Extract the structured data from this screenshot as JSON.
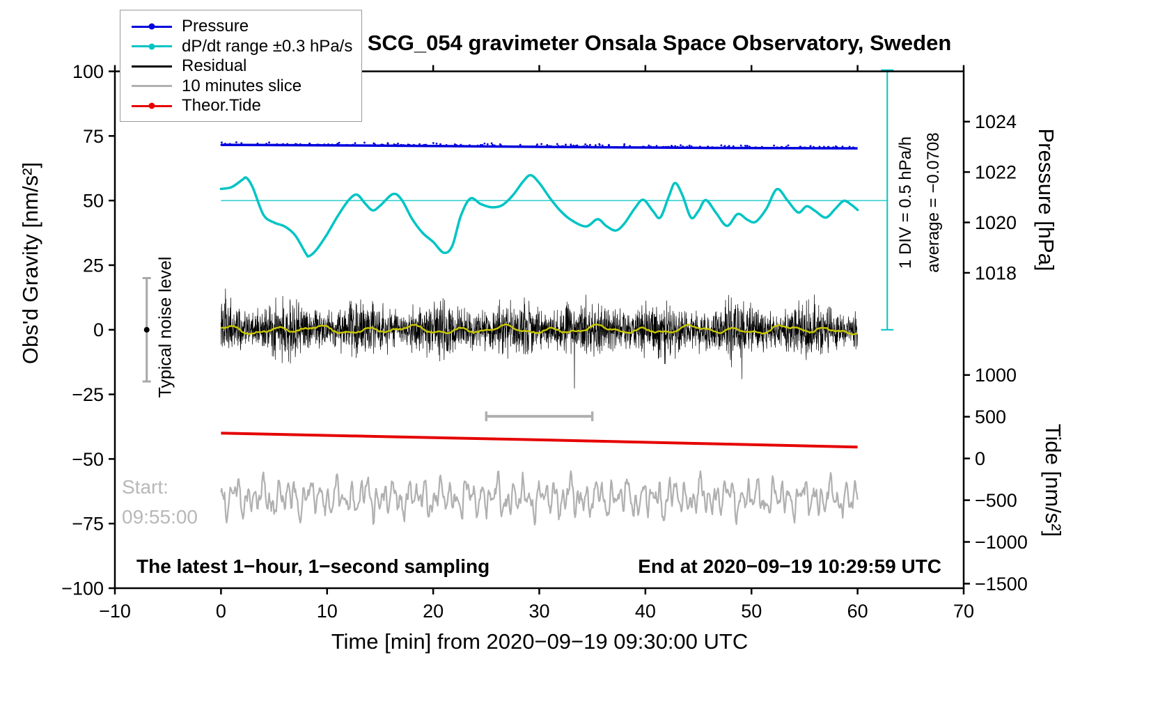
{
  "chart_data": {
    "type": "line",
    "title": "SCG_054 gravimeter Onsala Space Observatory, Sweden",
    "xlabel": "Time [min] from 2020−09−19 09:30:00 UTC",
    "ylabel_left": "Obs'd Gravity [nm/s²]",
    "x_range": [
      -10,
      70
    ],
    "y_left_range": [
      -100,
      100
    ],
    "x_ticks": [
      -10,
      0,
      10,
      20,
      30,
      40,
      50,
      60,
      70
    ],
    "y_left_ticks": [
      100,
      75,
      50,
      25,
      0,
      -25,
      -50,
      -75,
      -100
    ],
    "right_axes": {
      "pressure": {
        "label": "Pressure [hPa]",
        "ticks": [
          1024,
          1022,
          1020,
          1018
        ],
        "map": {
          "a": -9903.465,
          "b": 9.75
        }
      },
      "tide": {
        "label": "Tide [nm/s²]",
        "ticks": [
          1000,
          500,
          0,
          -500,
          -1000,
          -1500
        ],
        "map": {
          "a": -49.8,
          "b": 0.0323
        }
      }
    },
    "legend": [
      {
        "label": "Pressure",
        "color": "#0000dd",
        "dot": true
      },
      {
        "label": "dP/dt range ±0.3 hPa/s",
        "color": "#00c4c4",
        "dot": true
      },
      {
        "label": "Residual",
        "color": "#000000",
        "dot": false
      },
      {
        "label": "10 minutes slice",
        "color": "#b0b0b0",
        "dot": false
      },
      {
        "label": "Theor.Tide",
        "color": "#e60000",
        "dot": true
      }
    ],
    "series": [
      {
        "name": "Pressure",
        "color": "#0000dd",
        "unit": "hPa",
        "width": 3.5,
        "points": [
          [
            0,
            1023.08
          ],
          [
            15,
            1023.05
          ],
          [
            30,
            1023.0
          ],
          [
            45,
            1022.96
          ],
          [
            60,
            1022.94
          ]
        ],
        "scatter": {
          "n": 280,
          "seed": 7,
          "above": 1.3
        }
      },
      {
        "name": "dPdt",
        "color": "#00c4c4",
        "unit": "left",
        "width": 3.5,
        "smooth": true,
        "points": [
          [
            0,
            54.5
          ],
          [
            1,
            55.2
          ],
          [
            2,
            58.0
          ],
          [
            2.4,
            58.8
          ],
          [
            3,
            55.0
          ],
          [
            4,
            44.5
          ],
          [
            5,
            41.5
          ],
          [
            6,
            40.0
          ],
          [
            7,
            36.5
          ],
          [
            8,
            29.5
          ],
          [
            8.3,
            28.5
          ],
          [
            9,
            31.0
          ],
          [
            10,
            37.0
          ],
          [
            11,
            44.0
          ],
          [
            12,
            50.0
          ],
          [
            12.8,
            52.3
          ],
          [
            13.6,
            48.8
          ],
          [
            14.3,
            46.2
          ],
          [
            15,
            48.0
          ],
          [
            16.2,
            52.5
          ],
          [
            17,
            50.5
          ],
          [
            18,
            43.0
          ],
          [
            19,
            37.5
          ],
          [
            20,
            34.0
          ],
          [
            21,
            29.8
          ],
          [
            21.8,
            32.5
          ],
          [
            22.6,
            44.0
          ],
          [
            23.5,
            50.8
          ],
          [
            24.5,
            48.6
          ],
          [
            25.5,
            47.4
          ],
          [
            26.5,
            48.2
          ],
          [
            27.5,
            52.0
          ],
          [
            28.5,
            57.5
          ],
          [
            29.2,
            59.8
          ],
          [
            30,
            56.8
          ],
          [
            31,
            51.0
          ],
          [
            32,
            46.0
          ],
          [
            33,
            42.5
          ],
          [
            34.4,
            40.0
          ],
          [
            35.5,
            42.8
          ],
          [
            36.3,
            40.2
          ],
          [
            37.2,
            38.4
          ],
          [
            38,
            41.0
          ],
          [
            39,
            47.0
          ],
          [
            39.8,
            50.3
          ],
          [
            40.7,
            46.0
          ],
          [
            41.4,
            43.4
          ],
          [
            42.2,
            51.5
          ],
          [
            42.8,
            56.8
          ],
          [
            43.5,
            52.0
          ],
          [
            44.3,
            43.4
          ],
          [
            45,
            46.0
          ],
          [
            45.7,
            50.2
          ],
          [
            46.7,
            45.0
          ],
          [
            47.7,
            40.2
          ],
          [
            48.7,
            44.8
          ],
          [
            49.6,
            42.6
          ],
          [
            50.4,
            41.8
          ],
          [
            51.4,
            46.8
          ],
          [
            52.4,
            54.4
          ],
          [
            53.4,
            50.0
          ],
          [
            54.4,
            45.4
          ],
          [
            55.2,
            47.8
          ],
          [
            56,
            46.0
          ],
          [
            57,
            43.4
          ],
          [
            57.9,
            46.8
          ],
          [
            58.7,
            49.9
          ],
          [
            59.4,
            48.4
          ],
          [
            60,
            46.4
          ]
        ]
      },
      {
        "name": "Residual",
        "color": "#000000",
        "unit": "left",
        "width": 0.7,
        "gen": {
          "kind": "noise",
          "seed": 12345,
          "n": 3000,
          "x0": 0,
          "x1": 60,
          "mean": 0,
          "amp": 8.5,
          "spike_p": 0.015,
          "spike_mult": 1.9
        }
      },
      {
        "name": "ResidualMean",
        "color": "#c8c800",
        "unit": "left",
        "width": 2.4,
        "gen": {
          "kind": "sinmix",
          "seed": 5,
          "n": 400,
          "x0": 0,
          "x1": 60,
          "base": 0,
          "amps": [
            0.9,
            0.7,
            0.5
          ],
          "freqs": [
            0.23,
            0.11,
            0.47
          ],
          "phases": [
            0.5,
            2.1,
            4.0
          ],
          "noise": 0.25
        }
      },
      {
        "name": "TheorTide",
        "color": "#e60000",
        "unit": "left",
        "width": 4,
        "points": [
          [
            0,
            -40.0
          ],
          [
            15,
            -41.3
          ],
          [
            30,
            -42.6
          ],
          [
            45,
            -44.0
          ],
          [
            60,
            -45.4
          ]
        ]
      },
      {
        "name": "TenMinSlice",
        "color": "#b0b0b0",
        "unit": "left",
        "width": 2.2,
        "gen": {
          "kind": "sinmix",
          "seed": 99,
          "n": 900,
          "x0": 0,
          "x1": 60,
          "base": -65,
          "amps": [
            3.6,
            2.6,
            2.0,
            2.2,
            1.1
          ],
          "freqs": [
            1.31,
            0.73,
            2.17,
            0.41,
            3.1
          ],
          "phases": [
            0.3,
            1.7,
            2.9,
            4.4,
            0.9
          ],
          "noise": 1.6
        }
      }
    ],
    "annotations": {
      "noise_level_label": "Typical noise level",
      "noise_marker": {
        "x": -7,
        "v_lo": -20,
        "v_hi": 20,
        "dot_v": 0,
        "color": "#a8a8a8"
      },
      "div_label": "1 DIV = 0.5 hPa/h",
      "avg_label": "average = −0.0708",
      "div_bar": {
        "x": 62.8,
        "v_lo": 0,
        "v_hi": 100.5,
        "color": "#00c4c4"
      },
      "center_line": {
        "v": 50,
        "x0": 0,
        "x1": 62.8,
        "color": "#00c4c4"
      },
      "slice_bar": {
        "v": -33.5,
        "x0": 25,
        "x1": 35,
        "color": "#b0b0b0"
      },
      "start_label": "Start:",
      "start_time": "09:55:00",
      "sampling_note": "The latest 1−hour, 1−second sampling",
      "end_note": "End at 2020−09−19 10:29:59 UTC"
    }
  }
}
